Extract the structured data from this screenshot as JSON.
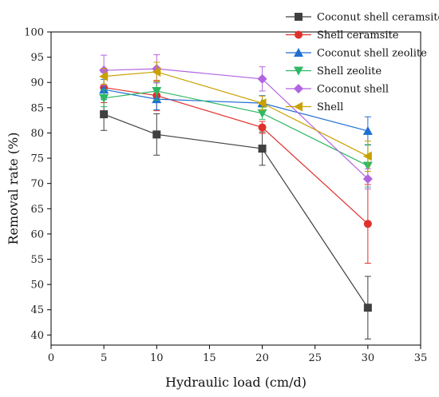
{
  "chart_data": {
    "type": "line",
    "title": "",
    "xlabel": "Hydraulic load (cm/d)",
    "ylabel": "Removal rate (%)",
    "xlim": [
      0,
      35
    ],
    "ylim": [
      38,
      100
    ],
    "xticks": [
      0,
      5,
      10,
      15,
      20,
      25,
      30,
      35
    ],
    "yticks": [
      40,
      45,
      50,
      55,
      60,
      65,
      70,
      75,
      80,
      85,
      90,
      95,
      100
    ],
    "x": [
      5,
      10,
      20,
      30
    ],
    "grid": false,
    "legend_position": "top-right",
    "series": [
      {
        "name": "Coconut shell ceramsite",
        "color": "#404040",
        "marker": "square",
        "values": [
          83.7,
          79.7,
          76.9,
          45.4
        ],
        "errors": [
          3.2,
          4.1,
          3.3,
          6.2
        ]
      },
      {
        "name": "Shell ceramsite",
        "color": "#e0302b",
        "marker": "circle",
        "values": [
          89.0,
          87.4,
          81.1,
          62.0
        ],
        "errors": [
          3.0,
          3.0,
          1.2,
          7.8
        ]
      },
      {
        "name": "Coconut shell zeolite",
        "color": "#1f6fd1",
        "marker": "triangle-up",
        "values": [
          88.6,
          86.7,
          85.9,
          80.4
        ],
        "errors": [
          2.0,
          2.1,
          1.5,
          2.8
        ]
      },
      {
        "name": "Shell zeolite",
        "color": "#2db863",
        "marker": "triangle-down",
        "values": [
          86.9,
          88.3,
          83.9,
          73.5
        ],
        "errors": [
          1.7,
          1.8,
          1.2,
          4.2
        ]
      },
      {
        "name": "Coconut shell",
        "color": "#b264e0",
        "marker": "diamond",
        "values": [
          92.4,
          92.7,
          90.7,
          70.9
        ],
        "errors": [
          3.0,
          2.8,
          2.4,
          2.0
        ]
      },
      {
        "name": "Shell",
        "color": "#c9a100",
        "marker": "triangle-left",
        "values": [
          91.2,
          92.1,
          85.9,
          75.4
        ],
        "errors": [
          1.6,
          1.9,
          1.4,
          3.0
        ]
      }
    ]
  }
}
